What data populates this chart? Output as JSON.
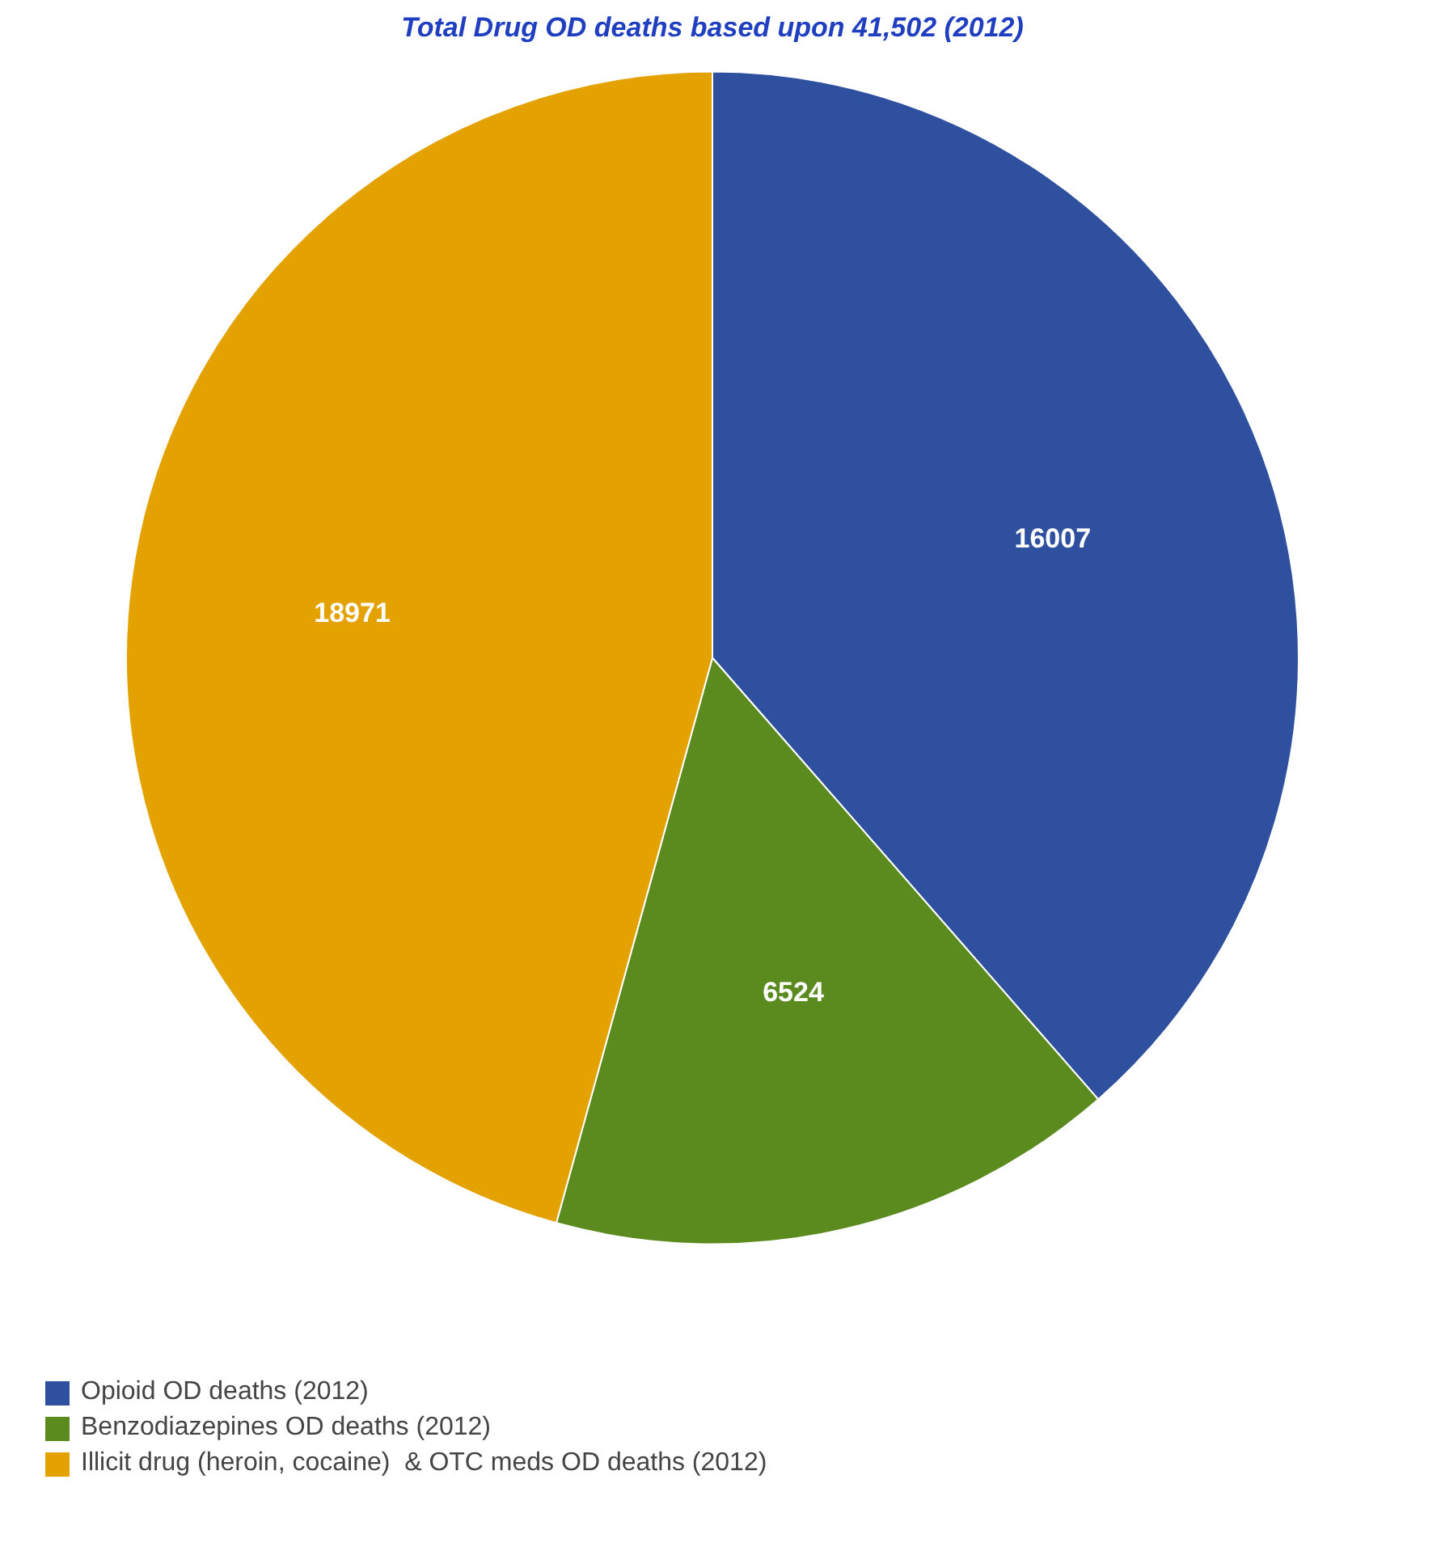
{
  "chart_data": {
    "type": "pie",
    "title": "Total Drug OD deaths based upon 41,502 (2012)",
    "categories": [
      "Opioid OD deaths (2012)",
      "Benzodiazepines OD deaths (2012)",
      "Illicit drug (heroin, cocaine)  & OTC meds OD deaths (2012)"
    ],
    "values": [
      16007,
      6524,
      18971
    ],
    "colors": [
      "#2f4f9f",
      "#5b8a1f",
      "#e3a200"
    ],
    "data_labels": true,
    "legend": "bottom left"
  }
}
